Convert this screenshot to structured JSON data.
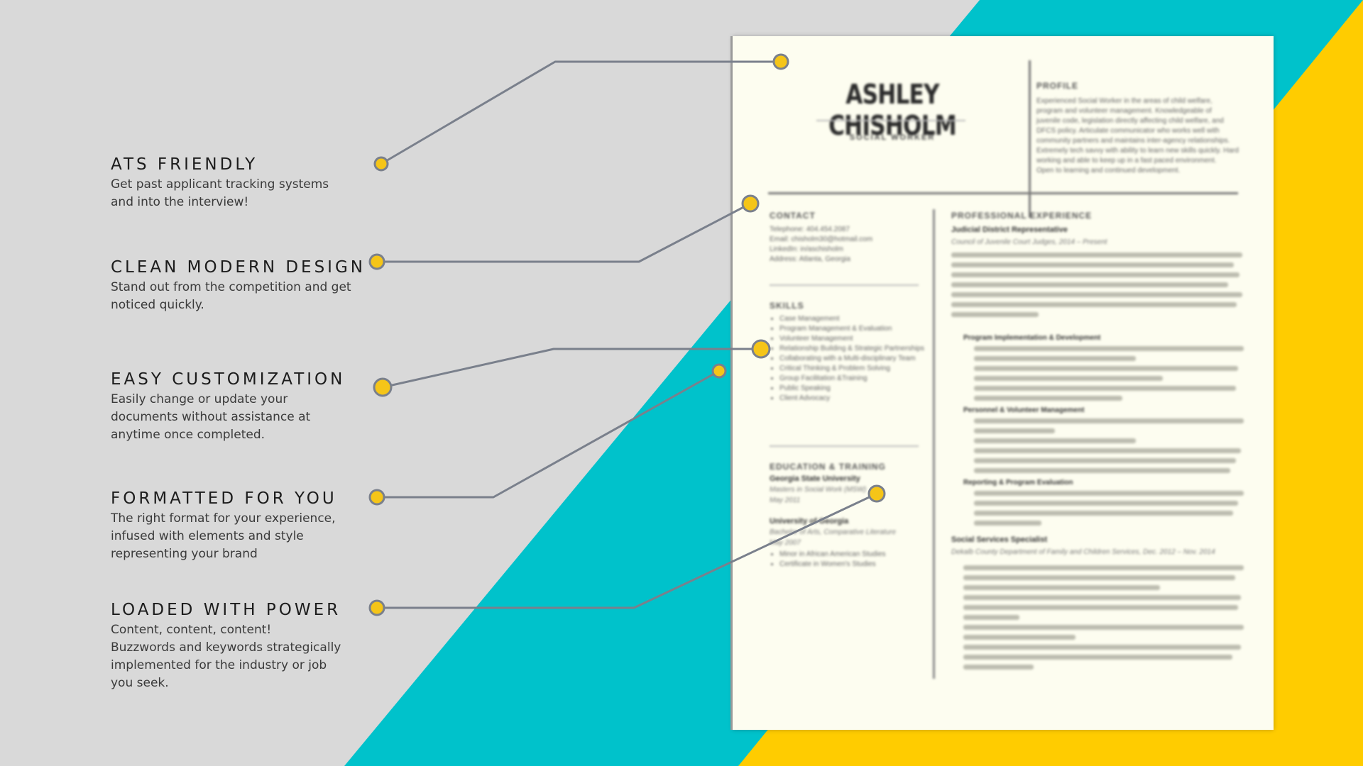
{
  "colors": {
    "background": "#d9d9d9",
    "teal": "#00c2cb",
    "yellow": "#ffcc00",
    "paper": "#fdfdf0",
    "connector": "#7a808c",
    "dot": "#f5c518"
  },
  "features": [
    {
      "title": "ATS FRIENDLY",
      "lines": [
        "Get past applicant tracking systems",
        "and into the interview!"
      ]
    },
    {
      "title": "CLEAN MODERN DESIGN",
      "lines": [
        "Stand out  from the competition and get",
        "noticed quickly."
      ]
    },
    {
      "title": "EASY CUSTOMIZATION",
      "lines": [
        "Easily change or update your",
        "documents without assistance at",
        "anytime once completed."
      ]
    },
    {
      "title": "FORMATTED FOR YOU",
      "lines": [
        "The right format for your experience,",
        "infused with elements and style",
        "representing your brand"
      ]
    },
    {
      "title": "LOADED WITH POWER",
      "lines": [
        "Content, content, content!",
        "Buzzwords and keywords strategically",
        "implemented for the industry or job",
        "you seek."
      ]
    }
  ],
  "resume": {
    "name": "ASHLEY CHISHOLM",
    "title": "SOCIAL WORKER",
    "profile_heading": "PROFILE",
    "profile_lines": [
      "Experienced Social Worker in the areas of child welfare,",
      "program and volunteer management. Knowledgeable of",
      "juvenile code, legislation directly affecting child welfare, and",
      "DFCS policy. Articulate communicator who works well with",
      "community partners and maintains inter-agency relationships.",
      "Extremely tech savvy with ability to learn new skills quickly. Hard",
      "working and able to keep up in a fast paced environment.",
      "Open to learning and continued development."
    ],
    "contact_heading": "CONTACT",
    "contact_lines": [
      "Telephone: 404.454.2087",
      "Email: chisholm30@hotmail.com",
      "LinkedIn: in/aschisholm",
      "Address: Atlanta, Georgia"
    ],
    "skills_heading": "SKILLS",
    "skills": [
      "Case Management",
      "Program Management & Evaluation",
      "Volunteer Management",
      "Relationship Building & Strategic Partnerships",
      "Collaborating with a Multi-disciplinary Team",
      "Critical Thinking & Problem Solving",
      "Group Facilitation &Training",
      "Public Speaking",
      "Client Advocacy"
    ],
    "education_heading": "EDUCATION & TRAINING",
    "school1": "Georgia State University",
    "school1_degree": "Masters in Social Work (MSW)",
    "school1_date": "May 2011",
    "school2": "University of Georgia",
    "school2_degree": "Bachelor of Arts, Comparative Literature",
    "school2_date": "May 2007",
    "school2_items": [
      "Minor in African American Studies",
      "Certificate in Women's Studies"
    ],
    "experience_heading": "PROFESSIONAL EXPERIENCE",
    "job1_title": "Judicial District Representative",
    "job1_org": "Council of Juvenile Court Judges, 2014 – Present",
    "job1_subhead1": "Program Implementation & Development",
    "job1_subhead2": "Personnel & Volunteer Management",
    "job1_subhead3": "Reporting & Program Evaluation",
    "job2_title": "Social Services Specialist",
    "job2_org": "Dekalb County Department of Family and Children Services, Dec. 2012 – Nov. 2014"
  }
}
